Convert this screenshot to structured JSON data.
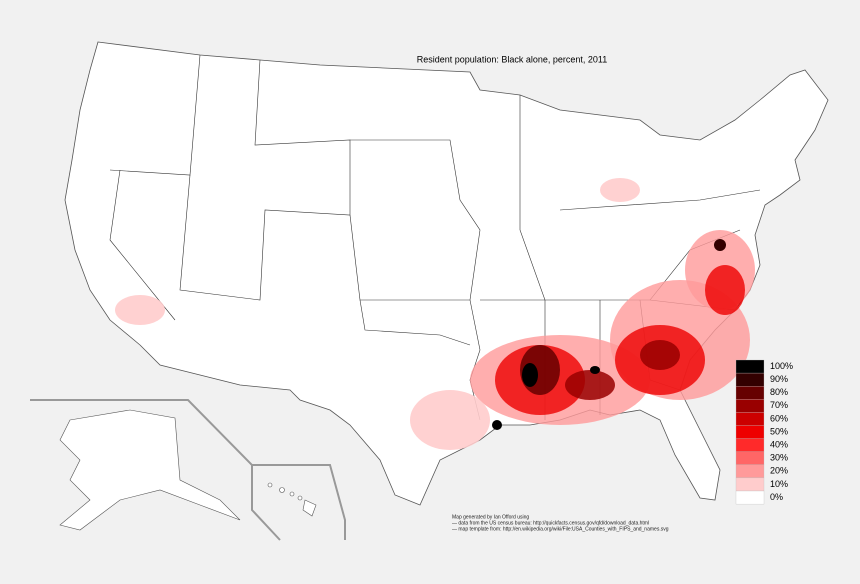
{
  "title": "Resident population: Black alone, percent, 2011",
  "legend": [
    {
      "label": "100%",
      "color": "#000000"
    },
    {
      "label": "90%",
      "color": "#330000"
    },
    {
      "label": "80%",
      "color": "#660000"
    },
    {
      "label": "70%",
      "color": "#990000"
    },
    {
      "label": "60%",
      "color": "#cc0000"
    },
    {
      "label": "50%",
      "color": "#ee0000"
    },
    {
      "label": "40%",
      "color": "#ff2a2a"
    },
    {
      "label": "30%",
      "color": "#ff6666"
    },
    {
      "label": "20%",
      "color": "#ff9a9a"
    },
    {
      "label": "10%",
      "color": "#ffcccc"
    },
    {
      "label": "0%",
      "color": "#ffffff"
    }
  ],
  "credits": [
    "Map generated by Ian Offord using",
    "— data from the US census bureau: http://quickfacts.census.gov/qfd/download_data.html",
    "— map template from: http://en.wikipedia.org/wiki/File:USA_Counties_with_FIPS_and_names.svg"
  ]
}
